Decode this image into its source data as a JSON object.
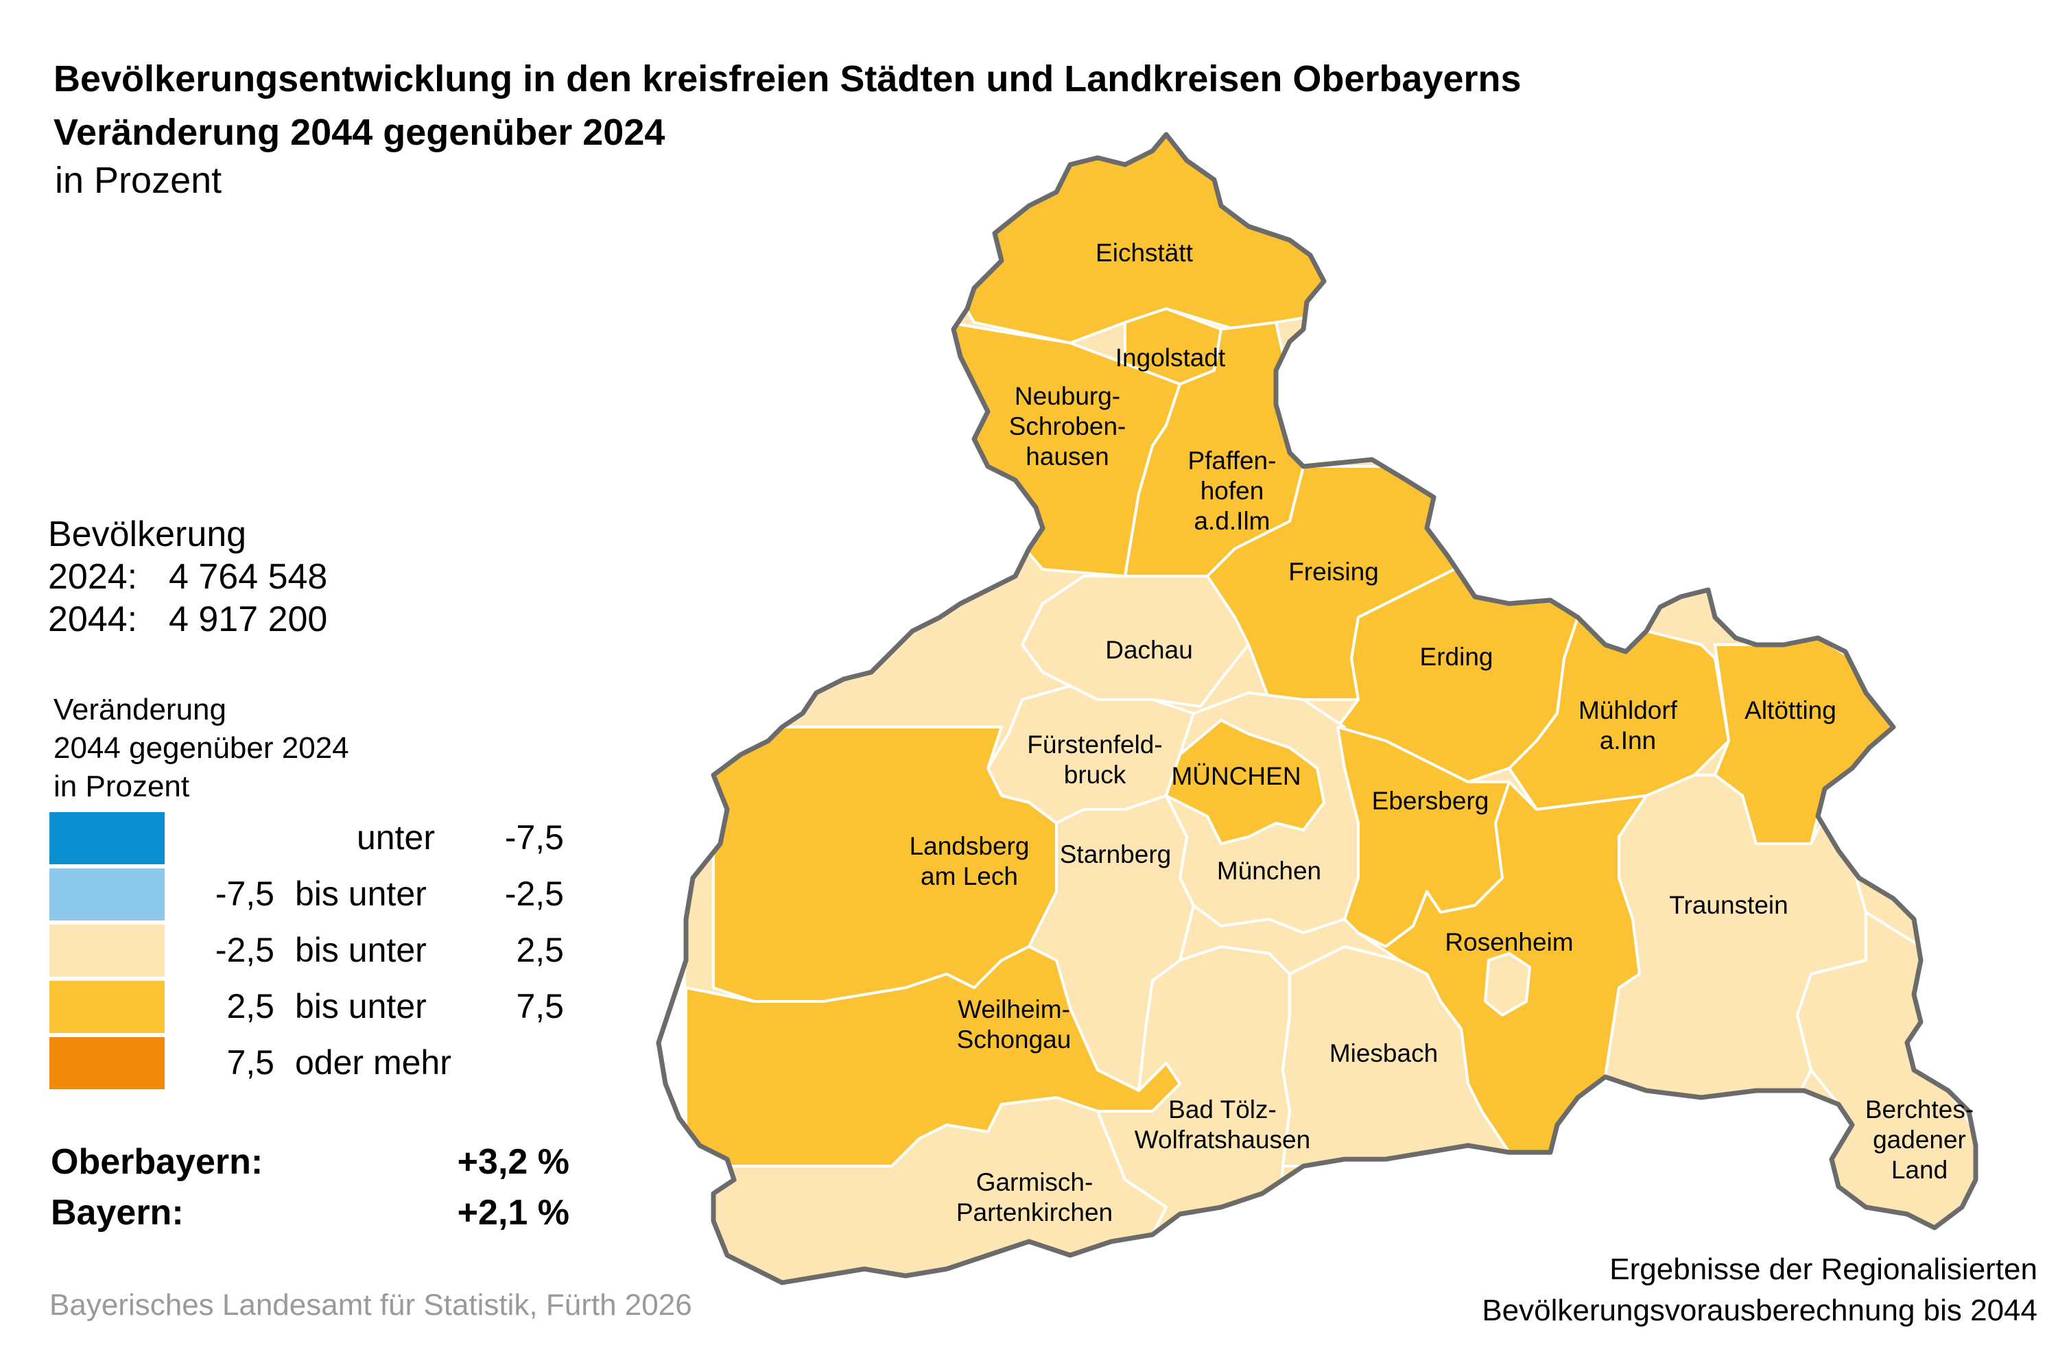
{
  "title": {
    "line1": "Bevölkerungsentwicklung in den kreisfreien Städten und Landkreisen Oberbayerns",
    "line2": "Veränderung 2044 gegenüber 2024",
    "unit": "in Prozent"
  },
  "population": {
    "heading": "Bevölkerung",
    "row_2024_label": "2024:",
    "row_2024_value": "4 764 548",
    "row_2044_label": "2044:",
    "row_2044_value": "4 917 200"
  },
  "legend": {
    "heading_lines": [
      "Veränderung",
      "2044 gegenüber 2024",
      "in Prozent"
    ],
    "classes": [
      {
        "from": "",
        "connector": "unter",
        "to": "-7,5",
        "color": "#0a8fd0"
      },
      {
        "from": "-7,5",
        "connector": "bis unter",
        "to": "-2,5",
        "color": "#8dc9ea"
      },
      {
        "from": "-2,5",
        "connector": "bis unter",
        "to": "2,5",
        "color": "#fde6b4"
      },
      {
        "from": "2,5",
        "connector": "bis unter",
        "to": "7,5",
        "color": "#fbc233"
      },
      {
        "from": "7,5",
        "connector": "oder mehr",
        "to": "",
        "color": "#f28a0b"
      }
    ]
  },
  "totals": [
    {
      "label": "Oberbayern:",
      "value": "+3,2 %"
    },
    {
      "label": "Bayern:",
      "value": "+2,1 %"
    }
  ],
  "source": "Bayerisches Landesamt für Statistik, Fürth 2026",
  "note_lines": [
    "Ergebnisse der Regionalisierten",
    "Bevölkerungsvorausberechnung bis 2044"
  ],
  "regions": [
    {
      "name": "Eichstätt",
      "lines": [
        "Eichstätt"
      ],
      "class": "2,5 bis unter 7,5"
    },
    {
      "name": "Ingolstadt",
      "lines": [
        "Ingolstadt"
      ],
      "class": "2,5 bis unter 7,5"
    },
    {
      "name": "Neuburg-Schrobenhausen",
      "lines": [
        "Neuburg-",
        "Schroben-",
        "hausen"
      ],
      "class": "2,5 bis unter 7,5"
    },
    {
      "name": "Pfaffenhofen a.d.Ilm",
      "lines": [
        "Pfaffen-",
        "hofen",
        "a.d.Ilm"
      ],
      "class": "2,5 bis unter 7,5"
    },
    {
      "name": "Freising",
      "lines": [
        "Freising"
      ],
      "class": "2,5 bis unter 7,5"
    },
    {
      "name": "Dachau",
      "lines": [
        "Dachau"
      ],
      "class": "-2,5 bis unter 2,5"
    },
    {
      "name": "Erding",
      "lines": [
        "Erding"
      ],
      "class": "2,5 bis unter 7,5"
    },
    {
      "name": "Mühldorf a.Inn",
      "lines": [
        "Mühldorf",
        "a.Inn"
      ],
      "class": "2,5 bis unter 7,5"
    },
    {
      "name": "Altötting",
      "lines": [
        "Altötting"
      ],
      "class": "2,5 bis unter 7,5"
    },
    {
      "name": "Fürstenfeldbruck",
      "lines": [
        "Fürstenfeld-",
        "bruck"
      ],
      "class": "-2,5 bis unter 2,5"
    },
    {
      "name": "MÜNCHEN",
      "lines": [
        "MÜNCHEN"
      ],
      "class": "2,5 bis unter 7,5"
    },
    {
      "name": "Ebersberg",
      "lines": [
        "Ebersberg"
      ],
      "class": "2,5 bis unter 7,5"
    },
    {
      "name": "Landsberg am Lech",
      "lines": [
        "Landsberg",
        "am Lech"
      ],
      "class": "2,5 bis unter 7,5"
    },
    {
      "name": "Starnberg",
      "lines": [
        "Starnberg"
      ],
      "class": "-2,5 bis unter 2,5"
    },
    {
      "name": "München",
      "lines": [
        "München"
      ],
      "class": "-2,5 bis unter 2,5"
    },
    {
      "name": "Traunstein",
      "lines": [
        "Traunstein"
      ],
      "class": "-2,5 bis unter 2,5"
    },
    {
      "name": "Rosenheim",
      "lines": [
        "Rosenheim"
      ],
      "class": "2,5 bis unter 7,5"
    },
    {
      "name": "Weilheim-Schongau",
      "lines": [
        "Weilheim-",
        "Schongau"
      ],
      "class": "2,5 bis unter 7,5"
    },
    {
      "name": "Miesbach",
      "lines": [
        "Miesbach"
      ],
      "class": "-2,5 bis unter 2,5"
    },
    {
      "name": "Bad Tölz-Wolfratshausen",
      "lines": [
        "Bad Tölz-",
        "Wolfratshausen"
      ],
      "class": "-2,5 bis unter 2,5"
    },
    {
      "name": "Berchtesgadener Land",
      "lines": [
        "Berchtes-",
        "gadener",
        "Land"
      ],
      "class": "-2,5 bis unter 2,5"
    },
    {
      "name": "Garmisch-Partenkirchen",
      "lines": [
        "Garmisch-",
        "Partenkirchen"
      ],
      "class": "-2,5 bis unter 2,5"
    },
    {
      "name": "Rosenheim (Stadt)",
      "lines": [],
      "class": "-2,5 bis unter 2,5"
    }
  ]
}
